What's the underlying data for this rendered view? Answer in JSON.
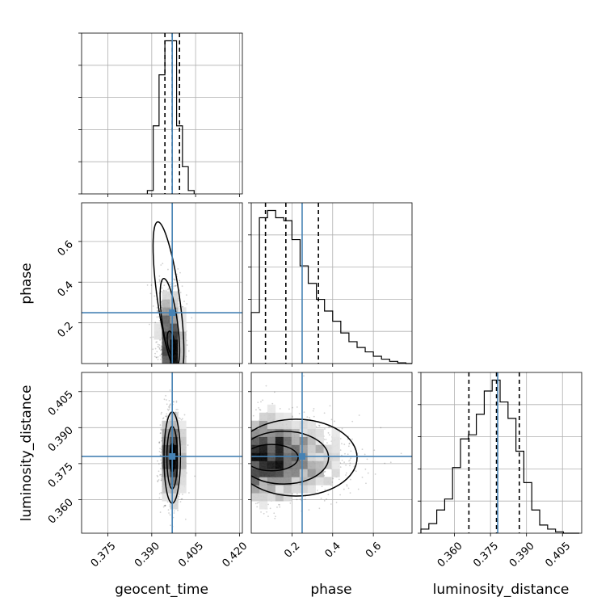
{
  "chart_data": {
    "type": "corner",
    "parameters": [
      "geocent_time",
      "phase",
      "luminosity_distance"
    ],
    "truths": {
      "geocent_time": 0.397,
      "phase": 0.25,
      "luminosity_distance": 0.378
    },
    "truth_color": "#4682b4",
    "quantiles": {
      "geocent_time": [
        0.3945,
        0.397,
        0.3995
      ],
      "phase": [
        0.07,
        0.17,
        0.33
      ],
      "luminosity_distance": [
        0.366,
        0.3775,
        0.387
      ]
    },
    "ranges": {
      "geocent_time": [
        0.366,
        0.421
      ],
      "phase": [
        0.0,
        0.79
      ],
      "luminosity_distance": [
        0.346,
        0.413
      ]
    },
    "ticks": {
      "geocent_time": {
        "values": [
          0.375,
          0.39,
          0.405,
          0.42
        ],
        "labels": [
          "0.375",
          "0.390",
          "0.405",
          "0.420"
        ]
      },
      "phase": {
        "values": [
          0.2,
          0.4,
          0.6
        ],
        "labels": [
          "0.2",
          "0.4",
          "0.6"
        ]
      },
      "luminosity_distance": {
        "values": [
          0.36,
          0.375,
          0.39,
          0.405
        ],
        "labels": [
          "0.360",
          "0.375",
          "0.390",
          "0.405"
        ]
      }
    },
    "hist_geocent_time": {
      "edges": [
        0.3885,
        0.3905,
        0.3925,
        0.3945,
        0.3965,
        0.3985,
        0.4005,
        0.4025,
        0.4045
      ],
      "counts": [
        1,
        20,
        35,
        45,
        45,
        20,
        8,
        1
      ]
    },
    "hist_phase": {
      "edges": [
        0.0,
        0.04,
        0.08,
        0.12,
        0.16,
        0.2,
        0.24,
        0.28,
        0.32,
        0.36,
        0.4,
        0.44,
        0.48,
        0.52,
        0.56,
        0.6,
        0.64,
        0.68,
        0.72,
        0.76,
        0.79
      ],
      "counts": [
        35,
        100,
        105,
        100,
        98,
        85,
        67,
        55,
        44,
        36,
        29,
        21,
        15,
        11,
        8,
        5,
        3,
        1.5,
        0.5,
        0
      ]
    },
    "hist_luminosity_distance": {
      "edges": [
        0.346,
        0.3493,
        0.3526,
        0.3559,
        0.3592,
        0.3625,
        0.3658,
        0.3691,
        0.3724,
        0.3757,
        0.379,
        0.3823,
        0.3856,
        0.3889,
        0.3922,
        0.3955,
        0.3988,
        0.4021,
        0.4054,
        0.4087,
        0.412
      ],
      "counts": [
        3,
        7,
        17,
        25,
        48,
        69,
        72,
        87,
        104,
        112,
        96,
        84,
        60,
        37,
        17,
        6,
        3,
        1,
        0,
        0
      ]
    },
    "samples_phase_vs_geocent_time": {
      "x_center": 0.397,
      "x_sd": 0.0018,
      "y_mode": 0.12,
      "y_max": 0.72
    },
    "samples_ld_vs_geocent_time": {
      "x_center": 0.397,
      "x_sd": 0.0018,
      "y_center": 0.3775,
      "y_sd": 0.0085
    },
    "samples_ld_vs_phase": {
      "x_mode": 0.12,
      "x_max": 0.79,
      "y_center": 0.3775,
      "y_sd": 0.0085
    }
  }
}
